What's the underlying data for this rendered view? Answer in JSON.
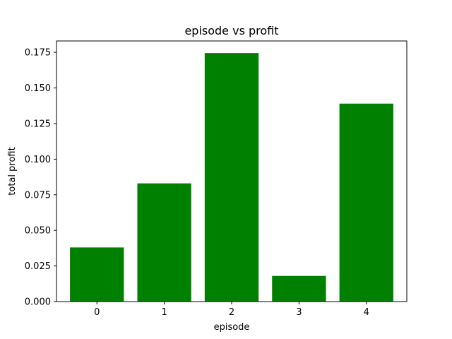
{
  "chart_data": {
    "type": "bar",
    "title": "episode vs profit",
    "xlabel": "episode",
    "ylabel": "total profit",
    "categories": [
      "0",
      "1",
      "2",
      "3",
      "4"
    ],
    "values": [
      0.038,
      0.083,
      0.1745,
      0.018,
      0.139
    ],
    "ylim": [
      0,
      0.183
    ],
    "yticks": [
      "0.000",
      "0.025",
      "0.050",
      "0.075",
      "0.100",
      "0.125",
      "0.150",
      "0.175"
    ],
    "grid": false,
    "bar_color": "#008000"
  }
}
